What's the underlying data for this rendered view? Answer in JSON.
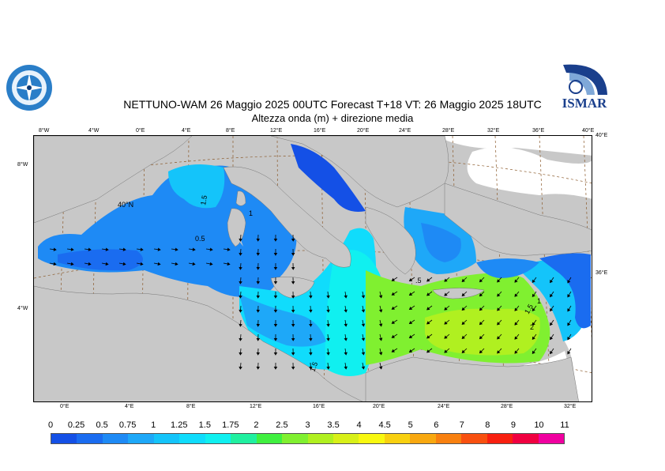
{
  "header": {
    "title_line1": "NETTUNO-WAM  26   Maggio  2025 00UTC Forecast T+18 VT: 26   Maggio  2025 18UTC",
    "title_line2": "Altezza onda (m) + direzione media"
  },
  "logos": {
    "left_logo": "centro-meteorologico-emblem",
    "right_logo": "ISMAR"
  },
  "map": {
    "top_ticks": [
      "8°W",
      "4°W",
      "0°E",
      "4°E",
      "8°E",
      "12°E",
      "16°E",
      "20°E",
      "24°E",
      "28°E",
      "32°E",
      "36°E",
      "40°E"
    ],
    "bottom_ticks": [
      "0°E",
      "4°E",
      "8°E",
      "12°E",
      "16°E",
      "20°E",
      "24°E",
      "28°E",
      "32°E"
    ],
    "left_ticks": [
      "8°W",
      "4°W"
    ],
    "right_ticks": [
      "40°E",
      "36°E"
    ],
    "interior_label": "40°N",
    "contour_labels": [
      "1.5",
      "1",
      "0.5",
      ".5",
      "1.5",
      "2",
      "1.5",
      "1"
    ]
  },
  "legend": {
    "labels": [
      "0",
      "0.25",
      "0.5",
      "0.75",
      "1",
      "1.25",
      "1.5",
      "1.75",
      "2",
      "2.5",
      "3",
      "3.5",
      "4",
      "4.5",
      "5",
      "6",
      "7",
      "8",
      "9",
      "10",
      "11"
    ],
    "colors": [
      "#1450e6",
      "#1a6cf0",
      "#1e8af5",
      "#1ea8f8",
      "#14c4fa",
      "#10dcfc",
      "#10f0f0",
      "#20f0a0",
      "#40f040",
      "#80f030",
      "#b0f020",
      "#d8f018",
      "#f8f810",
      "#f8d010",
      "#f8a810",
      "#f88010",
      "#f85010",
      "#f82010",
      "#f00040",
      "#f000a0"
    ],
    "land_color": "#c8c8c8",
    "external_land_color": "#ffffff"
  }
}
